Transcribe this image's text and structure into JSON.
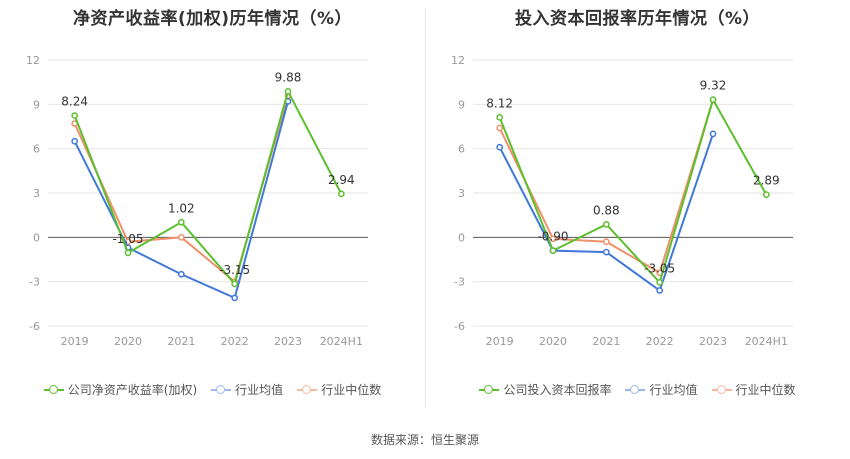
{
  "colors": {
    "company": "#5cbf2e",
    "industry_avg": "#3f78d8",
    "industry_median": "#f0906a",
    "grid": "#e6e6e6",
    "axis": "#555555",
    "tick": "#999999"
  },
  "source": "数据来源：恒生聚源",
  "chart_data": [
    {
      "type": "line",
      "title": "净资产收益率(加权)历年情况（%）",
      "categories": [
        "2019",
        "2020",
        "2021",
        "2022",
        "2023",
        "2024H1"
      ],
      "ylim": [
        -6,
        12
      ],
      "yticks": [
        12,
        9,
        6,
        3,
        0,
        -3,
        -6
      ],
      "grid": true,
      "legend_position": "bottom",
      "series": [
        {
          "name": "公司净资产收益率(加权)",
          "color_key": "company",
          "values": [
            8.24,
            -1.05,
            1.02,
            -3.15,
            9.88,
            2.94
          ],
          "labels": [
            "8.24",
            "-1.05",
            "1.02",
            "-3.15",
            "9.88",
            "2.94"
          ]
        },
        {
          "name": "行业均值",
          "color_key": "industry_avg",
          "values": [
            6.5,
            -0.7,
            -2.5,
            -4.1,
            9.2,
            null
          ]
        },
        {
          "name": "行业中位数",
          "color_key": "industry_median",
          "values": [
            7.7,
            -0.3,
            0.0,
            -3.0,
            9.6,
            null
          ]
        }
      ]
    },
    {
      "type": "line",
      "title": "投入资本回报率历年情况（%）",
      "categories": [
        "2019",
        "2020",
        "2021",
        "2022",
        "2023",
        "2024H1"
      ],
      "ylim": [
        -6,
        12
      ],
      "yticks": [
        12,
        9,
        6,
        3,
        0,
        -3,
        -6
      ],
      "grid": true,
      "legend_position": "bottom",
      "series": [
        {
          "name": "公司投入资本回报率",
          "color_key": "company",
          "values": [
            8.12,
            -0.9,
            0.88,
            -3.05,
            9.32,
            2.89
          ],
          "labels": [
            "8.12",
            "-0.90",
            "0.88",
            "-3.05",
            "9.32",
            "2.89"
          ]
        },
        {
          "name": "行业均值",
          "color_key": "industry_avg",
          "values": [
            6.1,
            -0.9,
            -1.0,
            -3.6,
            7.0,
            null
          ]
        },
        {
          "name": "行业中位数",
          "color_key": "industry_median",
          "values": [
            7.4,
            -0.1,
            -0.3,
            -2.4,
            9.3,
            null
          ]
        }
      ]
    }
  ]
}
